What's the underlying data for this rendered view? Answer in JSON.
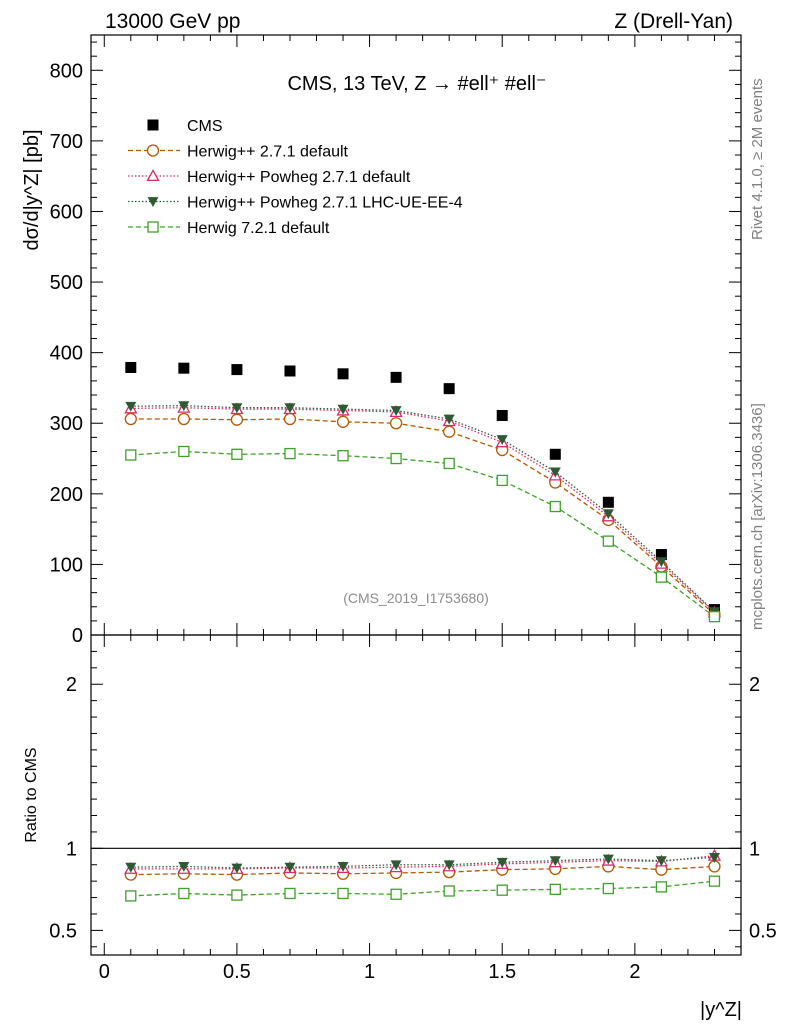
{
  "header": {
    "left": "13000 GeV pp",
    "right": "Z (Drell-Yan)"
  },
  "side_labels": {
    "rivet": "Rivet 4.1.0, ≥ 2M events",
    "mcplots": "mcplots.cern.ch [arXiv:1306.3436]"
  },
  "chart_data": {
    "type": "line",
    "title": "CMS, 13 TeV, Z →  #ell⁺ #ell⁻",
    "watermark": "(CMS_2019_I1753680)",
    "xlabel": "|y^Z|",
    "ylabel": "dσ/d|y^Z| [pb]",
    "ratio_ylabel": "Ratio to CMS",
    "xlim": [
      -0.05,
      2.4
    ],
    "ylim": [
      0,
      850
    ],
    "ratio_ylim": [
      0.35,
      2.3
    ],
    "x_ticks": [
      0,
      0.5,
      1,
      1.5,
      2
    ],
    "x_tick_labels": [
      "0",
      "0.5",
      "1",
      "1.5",
      "2"
    ],
    "y_ticks": [
      0,
      100,
      200,
      300,
      400,
      500,
      600,
      700,
      800
    ],
    "y_tick_labels": [
      "0",
      "100",
      "200",
      "300",
      "400",
      "500",
      "600",
      "700",
      "800"
    ],
    "ratio_ticks": [
      0.5,
      1,
      2
    ],
    "ratio_tick_labels": [
      "0.5",
      "1",
      "2"
    ],
    "legend_position": "top-left",
    "grid": false,
    "x": [
      0.1,
      0.3,
      0.5,
      0.7,
      0.9,
      1.1,
      1.3,
      1.5,
      1.7,
      1.9,
      2.1,
      2.3
    ],
    "series": [
      {
        "name": "CMS",
        "color": "#000000",
        "marker": "filled-square",
        "line": "none",
        "values": [
          379,
          378,
          376,
          374,
          370,
          365,
          349,
          311,
          256,
          188,
          114,
          36
        ]
      },
      {
        "name": "Herwig++ 2.7.1 default",
        "color": "#b35900",
        "marker": "open-circle",
        "line": "dashed",
        "values": [
          306,
          306,
          305,
          306,
          302,
          300,
          288,
          262,
          216,
          163,
          97,
          29
        ]
      },
      {
        "name": "Herwig++ Powheg 2.7.1 default",
        "color": "#d62d6a",
        "marker": "open-triangle",
        "line": "dotted",
        "values": [
          321,
          322,
          320,
          320,
          318,
          316,
          303,
          273,
          226,
          168,
          101,
          32
        ]
      },
      {
        "name": "Herwig++ Powheg 2.7.1 LHC-UE-EE-4",
        "color": "#2d5a33",
        "marker": "filled-triangle-down",
        "line": "dotted",
        "values": [
          324,
          325,
          322,
          322,
          320,
          318,
          306,
          277,
          231,
          172,
          104,
          33
        ]
      },
      {
        "name": "Herwig 7.2.1 default",
        "color": "#3fa02a",
        "marker": "open-square",
        "line": "dashed",
        "values": [
          255,
          260,
          256,
          257,
          254,
          250,
          243,
          219,
          182,
          133,
          82,
          26
        ]
      }
    ],
    "ratio_series": [
      {
        "name": "Herwig++ 2.7.1 default",
        "values": [
          0.84,
          0.845,
          0.84,
          0.85,
          0.845,
          0.85,
          0.855,
          0.87,
          0.875,
          0.89,
          0.87,
          0.89
        ]
      },
      {
        "name": "Herwig++ Powheg 2.7.1 default",
        "values": [
          0.875,
          0.875,
          0.875,
          0.88,
          0.88,
          0.885,
          0.89,
          0.905,
          0.915,
          0.925,
          0.92,
          0.955
        ]
      },
      {
        "name": "Herwig++ Powheg 2.7.1 LHC-UE-EE-4",
        "values": [
          0.885,
          0.89,
          0.88,
          0.885,
          0.89,
          0.9,
          0.9,
          0.915,
          0.925,
          0.935,
          0.925,
          0.945
        ]
      },
      {
        "name": "Herwig 7.2.1 default",
        "values": [
          0.71,
          0.725,
          0.715,
          0.725,
          0.725,
          0.72,
          0.74,
          0.745,
          0.75,
          0.755,
          0.765,
          0.8
        ]
      }
    ]
  }
}
